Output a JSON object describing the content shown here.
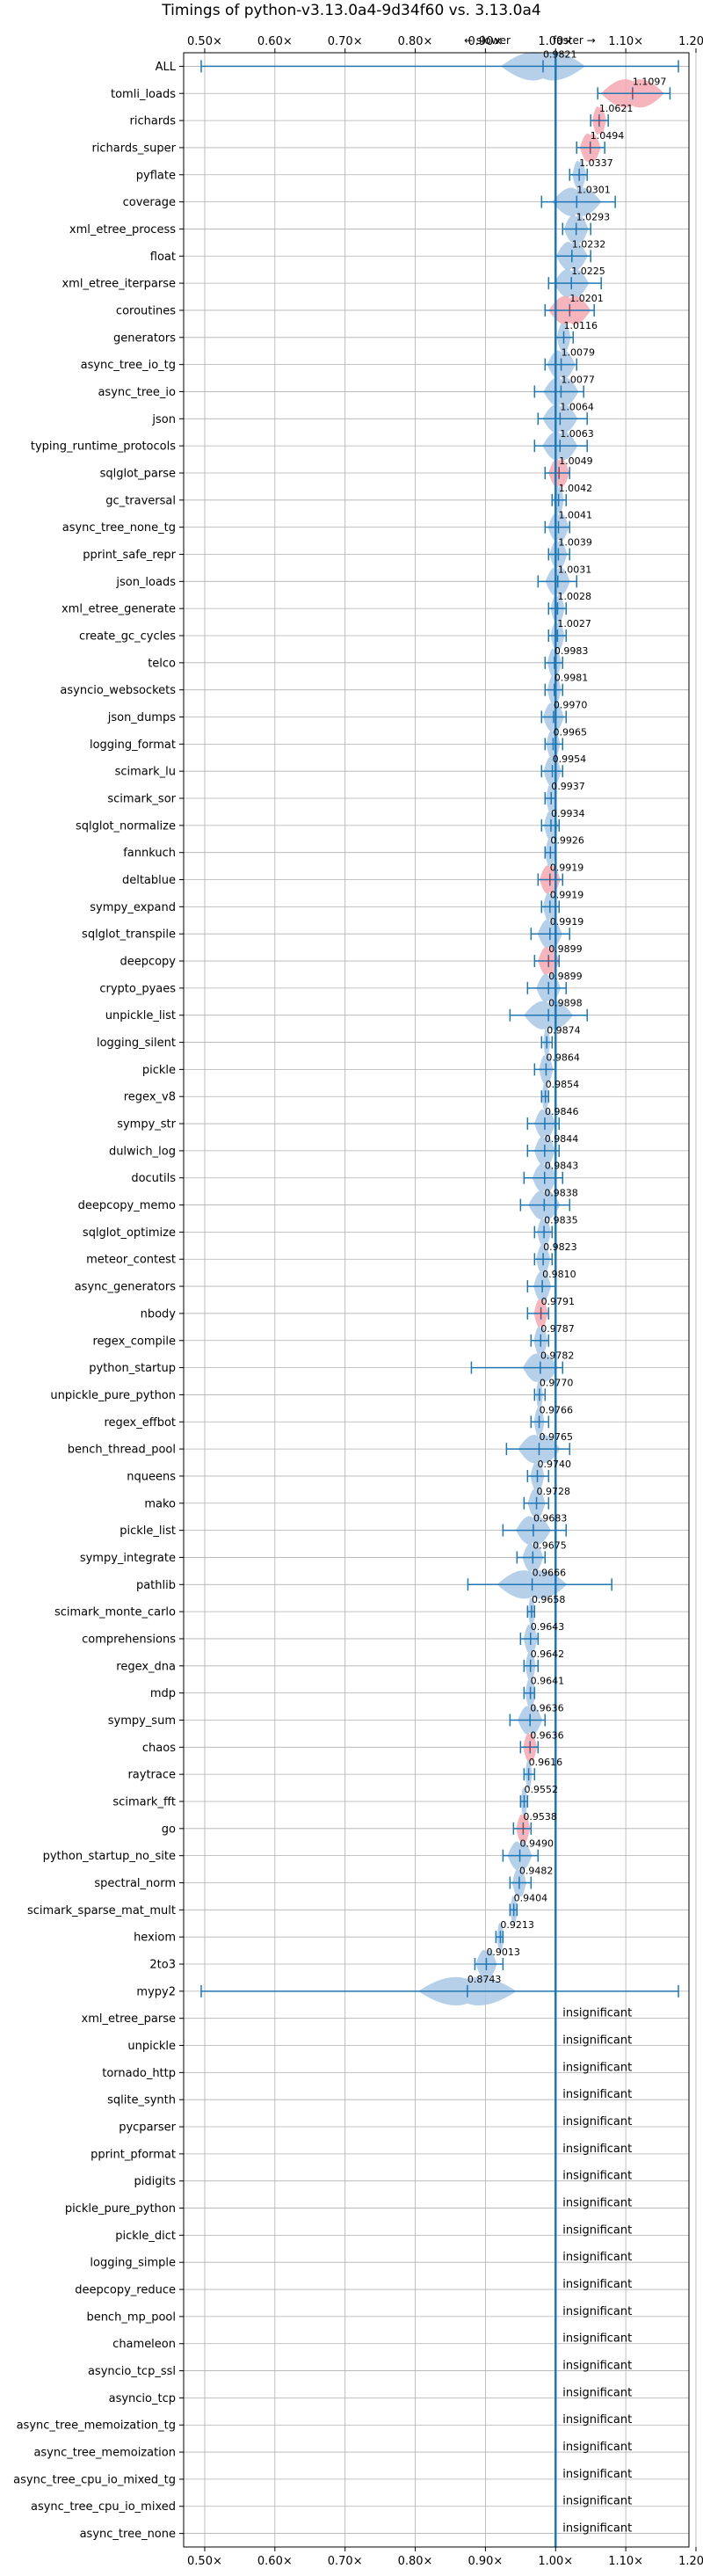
{
  "chart_data": {
    "type": "violin",
    "title": "Timings of python-v3.13.0a4-9d34f60 vs. 3.13.0a4",
    "direction_labels": {
      "slower": "← slower",
      "faster": "faster →"
    },
    "xlim": [
      0.47,
      1.19
    ],
    "x_ticks": [
      0.5,
      0.6,
      0.7,
      0.8,
      0.9,
      1.0,
      1.1,
      1.2
    ],
    "x_tick_labels": [
      "0.50×",
      "0.60×",
      "0.70×",
      "0.80×",
      "0.90×",
      "1.00×",
      "1.10×",
      "1.20×"
    ],
    "reference_line": 1.0,
    "grid": true,
    "colors": {
      "normal": "#aac8e6",
      "significant_slower": "#f4a8b0",
      "line": "#1f77b4",
      "grid": "#b0b0b0",
      "median": "#d62728"
    },
    "insignificant_label": "insignificant",
    "benchmarks": [
      {
        "name": "ALL",
        "value": 0.9821,
        "label": "0.9821",
        "low": 0.495,
        "high": 1.175,
        "spread": 0.12,
        "color": "normal"
      },
      {
        "name": "tomli_loads",
        "value": 1.1097,
        "label": "1.1097",
        "low": 1.06,
        "high": 1.163,
        "spread": 0.09,
        "color": "significant_slower"
      },
      {
        "name": "richards",
        "value": 1.0621,
        "label": "1.0621",
        "low": 1.05,
        "high": 1.075,
        "spread": 0.02,
        "color": "significant_slower"
      },
      {
        "name": "richards_super",
        "value": 1.0494,
        "label": "1.0494",
        "low": 1.03,
        "high": 1.07,
        "spread": 0.03,
        "color": "significant_slower"
      },
      {
        "name": "pyflate",
        "value": 1.0337,
        "label": "1.0337",
        "low": 1.02,
        "high": 1.045,
        "spread": 0.02,
        "color": "normal"
      },
      {
        "name": "coverage",
        "value": 1.0301,
        "label": "1.0301",
        "low": 0.98,
        "high": 1.085,
        "spread": 0.07,
        "color": "normal"
      },
      {
        "name": "xml_etree_process",
        "value": 1.0293,
        "label": "1.0293",
        "low": 1.01,
        "high": 1.05,
        "spread": 0.035,
        "color": "normal"
      },
      {
        "name": "float",
        "value": 1.0232,
        "label": "1.0232",
        "low": 1.0,
        "high": 1.05,
        "spread": 0.045,
        "color": "normal"
      },
      {
        "name": "xml_etree_iterparse",
        "value": 1.0225,
        "label": "1.0225",
        "low": 0.99,
        "high": 1.065,
        "spread": 0.05,
        "color": "normal"
      },
      {
        "name": "coroutines",
        "value": 1.0201,
        "label": "1.0201",
        "low": 0.985,
        "high": 1.055,
        "spread": 0.06,
        "color": "significant_slower"
      },
      {
        "name": "generators",
        "value": 1.0116,
        "label": "1.0116",
        "low": 1.0,
        "high": 1.025,
        "spread": 0.02,
        "color": "normal"
      },
      {
        "name": "async_tree_io_tg",
        "value": 1.0079,
        "label": "1.0079",
        "low": 0.985,
        "high": 1.03,
        "spread": 0.04,
        "color": "normal"
      },
      {
        "name": "async_tree_io",
        "value": 1.0077,
        "label": "1.0077",
        "low": 0.97,
        "high": 1.04,
        "spread": 0.05,
        "color": "normal"
      },
      {
        "name": "json",
        "value": 1.0064,
        "label": "1.0064",
        "low": 0.975,
        "high": 1.045,
        "spread": 0.05,
        "color": "normal"
      },
      {
        "name": "typing_runtime_protocols",
        "value": 1.0063,
        "label": "1.0063",
        "low": 0.97,
        "high": 1.045,
        "spread": 0.05,
        "color": "normal"
      },
      {
        "name": "sqlglot_parse",
        "value": 1.0049,
        "label": "1.0049",
        "low": 0.985,
        "high": 1.02,
        "spread": 0.03,
        "color": "significant_slower"
      },
      {
        "name": "gc_traversal",
        "value": 1.0042,
        "label": "1.0042",
        "low": 0.995,
        "high": 1.015,
        "spread": 0.015,
        "color": "normal"
      },
      {
        "name": "async_tree_none_tg",
        "value": 1.0041,
        "label": "1.0041",
        "low": 0.985,
        "high": 1.02,
        "spread": 0.03,
        "color": "normal"
      },
      {
        "name": "pprint_safe_repr",
        "value": 1.0039,
        "label": "1.0039",
        "low": 0.99,
        "high": 1.02,
        "spread": 0.025,
        "color": "normal"
      },
      {
        "name": "json_loads",
        "value": 1.0031,
        "label": "1.0031",
        "low": 0.975,
        "high": 1.03,
        "spread": 0.035,
        "color": "normal"
      },
      {
        "name": "xml_etree_generate",
        "value": 1.0028,
        "label": "1.0028",
        "low": 0.99,
        "high": 1.015,
        "spread": 0.02,
        "color": "normal"
      },
      {
        "name": "create_gc_cycles",
        "value": 1.0027,
        "label": "1.0027",
        "low": 0.99,
        "high": 1.015,
        "spread": 0.02,
        "color": "normal"
      },
      {
        "name": "telco",
        "value": 0.9983,
        "label": "0.9983",
        "low": 0.985,
        "high": 1.01,
        "spread": 0.02,
        "color": "normal"
      },
      {
        "name": "asyncio_websockets",
        "value": 0.9981,
        "label": "0.9981",
        "low": 0.985,
        "high": 1.01,
        "spread": 0.02,
        "color": "normal"
      },
      {
        "name": "json_dumps",
        "value": 0.997,
        "label": "0.9970",
        "low": 0.98,
        "high": 1.015,
        "spread": 0.03,
        "color": "normal"
      },
      {
        "name": "logging_format",
        "value": 0.9965,
        "label": "0.9965",
        "low": 0.985,
        "high": 1.01,
        "spread": 0.02,
        "color": "normal"
      },
      {
        "name": "scimark_lu",
        "value": 0.9954,
        "label": "0.9954",
        "low": 0.98,
        "high": 1.01,
        "spread": 0.025,
        "color": "normal"
      },
      {
        "name": "scimark_sor",
        "value": 0.9937,
        "label": "0.9937",
        "low": 0.985,
        "high": 1.0,
        "spread": 0.015,
        "color": "normal"
      },
      {
        "name": "sqlglot_normalize",
        "value": 0.9934,
        "label": "0.9934",
        "low": 0.98,
        "high": 1.005,
        "spread": 0.02,
        "color": "normal"
      },
      {
        "name": "fannkuch",
        "value": 0.9926,
        "label": "0.9926",
        "low": 0.985,
        "high": 1.0,
        "spread": 0.015,
        "color": "normal"
      },
      {
        "name": "deltablue",
        "value": 0.9919,
        "label": "0.9919",
        "low": 0.975,
        "high": 1.01,
        "spread": 0.03,
        "color": "significant_slower"
      },
      {
        "name": "sympy_expand",
        "value": 0.9919,
        "label": "0.9919",
        "low": 0.98,
        "high": 1.005,
        "spread": 0.02,
        "color": "normal"
      },
      {
        "name": "sqlglot_transpile",
        "value": 0.9919,
        "label": "0.9919",
        "low": 0.965,
        "high": 1.02,
        "spread": 0.035,
        "color": "normal"
      },
      {
        "name": "deepcopy",
        "value": 0.9899,
        "label": "0.9899",
        "low": 0.97,
        "high": 1.005,
        "spread": 0.03,
        "color": "significant_slower"
      },
      {
        "name": "crypto_pyaes",
        "value": 0.9899,
        "label": "0.9899",
        "low": 0.96,
        "high": 1.015,
        "spread": 0.035,
        "color": "normal"
      },
      {
        "name": "unpickle_list",
        "value": 0.9898,
        "label": "0.9898",
        "low": 0.935,
        "high": 1.045,
        "spread": 0.07,
        "color": "normal"
      },
      {
        "name": "logging_silent",
        "value": 0.9874,
        "label": "0.9874",
        "low": 0.98,
        "high": 0.995,
        "spread": 0.01,
        "color": "normal"
      },
      {
        "name": "pickle",
        "value": 0.9864,
        "label": "0.9864",
        "low": 0.97,
        "high": 1.0,
        "spread": 0.02,
        "color": "normal"
      },
      {
        "name": "regex_v8",
        "value": 0.9854,
        "label": "0.9854",
        "low": 0.98,
        "high": 0.99,
        "spread": 0.01,
        "color": "normal"
      },
      {
        "name": "sympy_str",
        "value": 0.9846,
        "label": "0.9846",
        "low": 0.96,
        "high": 1.005,
        "spread": 0.03,
        "color": "normal"
      },
      {
        "name": "dulwich_log",
        "value": 0.9844,
        "label": "0.9844",
        "low": 0.96,
        "high": 1.005,
        "spread": 0.03,
        "color": "normal"
      },
      {
        "name": "docutils",
        "value": 0.9843,
        "label": "0.9843",
        "low": 0.955,
        "high": 1.01,
        "spread": 0.035,
        "color": "normal"
      },
      {
        "name": "deepcopy_memo",
        "value": 0.9838,
        "label": "0.9838",
        "low": 0.95,
        "high": 1.02,
        "spread": 0.045,
        "color": "normal"
      },
      {
        "name": "sqlglot_optimize",
        "value": 0.9835,
        "label": "0.9835",
        "low": 0.97,
        "high": 0.995,
        "spread": 0.02,
        "color": "normal"
      },
      {
        "name": "meteor_contest",
        "value": 0.9823,
        "label": "0.9823",
        "low": 0.97,
        "high": 0.995,
        "spread": 0.02,
        "color": "normal"
      },
      {
        "name": "async_generators",
        "value": 0.981,
        "label": "0.9810",
        "low": 0.96,
        "high": 1.0,
        "spread": 0.025,
        "color": "normal"
      },
      {
        "name": "nbody",
        "value": 0.9791,
        "label": "0.9791",
        "low": 0.96,
        "high": 0.99,
        "spread": 0.02,
        "color": "significant_slower"
      },
      {
        "name": "regex_compile",
        "value": 0.9787,
        "label": "0.9787",
        "low": 0.965,
        "high": 0.99,
        "spread": 0.02,
        "color": "normal"
      },
      {
        "name": "python_startup",
        "value": 0.9782,
        "label": "0.9782",
        "low": 0.88,
        "high": 1.01,
        "spread": 0.05,
        "color": "normal"
      },
      {
        "name": "unpickle_pure_python",
        "value": 0.977,
        "label": "0.9770",
        "low": 0.97,
        "high": 0.985,
        "spread": 0.01,
        "color": "normal"
      },
      {
        "name": "regex_effbot",
        "value": 0.9766,
        "label": "0.9766",
        "low": 0.965,
        "high": 0.99,
        "spread": 0.015,
        "color": "normal"
      },
      {
        "name": "bench_thread_pool",
        "value": 0.9765,
        "label": "0.9765",
        "low": 0.93,
        "high": 1.02,
        "spread": 0.06,
        "color": "normal"
      },
      {
        "name": "nqueens",
        "value": 0.974,
        "label": "0.9740",
        "low": 0.96,
        "high": 0.99,
        "spread": 0.02,
        "color": "normal"
      },
      {
        "name": "mako",
        "value": 0.9728,
        "label": "0.9728",
        "low": 0.955,
        "high": 0.99,
        "spread": 0.025,
        "color": "normal"
      },
      {
        "name": "pickle_list",
        "value": 0.9683,
        "label": "0.9683",
        "low": 0.925,
        "high": 1.015,
        "spread": 0.05,
        "color": "normal"
      },
      {
        "name": "sympy_integrate",
        "value": 0.9675,
        "label": "0.9675",
        "low": 0.945,
        "high": 0.985,
        "spread": 0.03,
        "color": "normal"
      },
      {
        "name": "pathlib",
        "value": 0.9666,
        "label": "0.9666",
        "low": 0.875,
        "high": 1.08,
        "spread": 0.1,
        "color": "normal"
      },
      {
        "name": "scimark_monte_carlo",
        "value": 0.9658,
        "label": "0.9658",
        "low": 0.96,
        "high": 0.97,
        "spread": 0.01,
        "color": "normal"
      },
      {
        "name": "comprehensions",
        "value": 0.9643,
        "label": "0.9643",
        "low": 0.95,
        "high": 0.975,
        "spread": 0.02,
        "color": "normal"
      },
      {
        "name": "regex_dna",
        "value": 0.9642,
        "label": "0.9642",
        "low": 0.955,
        "high": 0.975,
        "spread": 0.015,
        "color": "normal"
      },
      {
        "name": "mdp",
        "value": 0.9641,
        "label": "0.9641",
        "low": 0.955,
        "high": 0.97,
        "spread": 0.015,
        "color": "normal"
      },
      {
        "name": "sympy_sum",
        "value": 0.9636,
        "label": "0.9636",
        "low": 0.935,
        "high": 0.985,
        "spread": 0.035,
        "color": "normal"
      },
      {
        "name": "chaos",
        "value": 0.9636,
        "label": "0.9636",
        "low": 0.95,
        "high": 0.975,
        "spread": 0.02,
        "color": "significant_slower"
      },
      {
        "name": "raytrace",
        "value": 0.9616,
        "label": "0.9616",
        "low": 0.955,
        "high": 0.97,
        "spread": 0.01,
        "color": "normal"
      },
      {
        "name": "scimark_fft",
        "value": 0.9552,
        "label": "0.9552",
        "low": 0.95,
        "high": 0.96,
        "spread": 0.01,
        "color": "normal"
      },
      {
        "name": "go",
        "value": 0.9538,
        "label": "0.9538",
        "low": 0.94,
        "high": 0.965,
        "spread": 0.02,
        "color": "significant_slower"
      },
      {
        "name": "python_startup_no_site",
        "value": 0.949,
        "label": "0.9490",
        "low": 0.925,
        "high": 0.975,
        "spread": 0.035,
        "color": "normal"
      },
      {
        "name": "spectral_norm",
        "value": 0.9482,
        "label": "0.9482",
        "low": 0.935,
        "high": 0.965,
        "spread": 0.02,
        "color": "normal"
      },
      {
        "name": "scimark_sparse_mat_mult",
        "value": 0.9404,
        "label": "0.9404",
        "low": 0.935,
        "high": 0.945,
        "spread": 0.01,
        "color": "normal"
      },
      {
        "name": "hexiom",
        "value": 0.9213,
        "label": "0.9213",
        "low": 0.915,
        "high": 0.925,
        "spread": 0.01,
        "color": "normal"
      },
      {
        "name": "2to3",
        "value": 0.9013,
        "label": "0.9013",
        "low": 0.885,
        "high": 0.925,
        "spread": 0.03,
        "color": "normal"
      },
      {
        "name": "mypy2",
        "value": 0.8743,
        "label": "0.8743",
        "low": 0.495,
        "high": 1.175,
        "spread": 0.14,
        "color": "normal"
      },
      {
        "name": "xml_etree_parse",
        "insignificant": true
      },
      {
        "name": "unpickle",
        "insignificant": true
      },
      {
        "name": "tornado_http",
        "insignificant": true
      },
      {
        "name": "sqlite_synth",
        "insignificant": true
      },
      {
        "name": "pycparser",
        "insignificant": true
      },
      {
        "name": "pprint_pformat",
        "insignificant": true
      },
      {
        "name": "pidigits",
        "insignificant": true
      },
      {
        "name": "pickle_pure_python",
        "insignificant": true
      },
      {
        "name": "pickle_dict",
        "insignificant": true
      },
      {
        "name": "logging_simple",
        "insignificant": true
      },
      {
        "name": "deepcopy_reduce",
        "insignificant": true
      },
      {
        "name": "bench_mp_pool",
        "insignificant": true
      },
      {
        "name": "chameleon",
        "insignificant": true
      },
      {
        "name": "asyncio_tcp_ssl",
        "insignificant": true
      },
      {
        "name": "asyncio_tcp",
        "insignificant": true
      },
      {
        "name": "async_tree_memoization_tg",
        "insignificant": true
      },
      {
        "name": "async_tree_memoization",
        "insignificant": true
      },
      {
        "name": "async_tree_cpu_io_mixed_tg",
        "insignificant": true
      },
      {
        "name": "async_tree_cpu_io_mixed",
        "insignificant": true
      },
      {
        "name": "async_tree_none",
        "insignificant": true
      }
    ]
  }
}
